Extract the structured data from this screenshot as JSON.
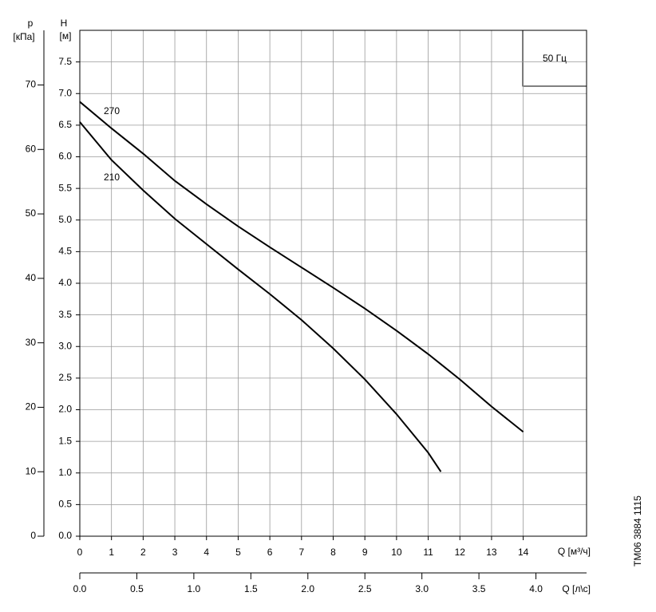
{
  "chart_data": {
    "type": "line",
    "p_label": "p",
    "p_unit": "[кПа]",
    "h_label": "H",
    "h_unit": "[м]",
    "x_label": "Q [м³/ч]",
    "x2_label": "Q [л\\с]",
    "annotation": "50 Гц",
    "code": "TM06 3884 1115",
    "x": [
      0,
      1,
      2,
      3,
      4,
      5,
      6,
      7,
      8,
      9,
      10,
      11,
      11.4,
      12,
      13,
      14
    ],
    "series": [
      {
        "name": "270",
        "color": "#000000",
        "values": [
          6.87,
          6.45,
          6.05,
          5.62,
          5.25,
          4.9,
          4.57,
          4.25,
          3.93,
          3.6,
          3.25,
          2.88,
          2.72,
          2.48,
          2.05,
          1.65
        ]
      },
      {
        "name": "210",
        "color": "#000000",
        "values": [
          6.55,
          5.95,
          5.47,
          5.02,
          4.62,
          4.22,
          3.83,
          3.42,
          2.97,
          2.48,
          1.93,
          1.32,
          1.02,
          null,
          null,
          null
        ]
      }
    ],
    "xlim": [
      0,
      16
    ],
    "xticks": [
      0,
      1,
      2,
      3,
      4,
      5,
      6,
      7,
      8,
      9,
      10,
      11,
      12,
      13,
      14
    ],
    "ylim": [
      0,
      8
    ],
    "yticks": [
      {
        "value": 0,
        "label": "0.0"
      },
      0.5,
      {
        "value": 1,
        "label": "1.0"
      },
      1.5,
      {
        "value": 2,
        "label": "2.0"
      },
      2.5,
      {
        "value": 3,
        "label": "3.0"
      },
      3.5,
      {
        "value": 4,
        "label": "4.0"
      },
      4.5,
      {
        "value": 5,
        "label": "5.0"
      },
      5.5,
      {
        "value": 6,
        "label": "6.0"
      },
      6.5,
      {
        "value": 7,
        "label": "7.0"
      },
      7.5
    ],
    "y2lim": [
      0,
      78.48
    ],
    "y2ticks": [
      0,
      10,
      20,
      30,
      40,
      50,
      60,
      70
    ],
    "x2lim": [
      0,
      4.444
    ],
    "x2ticks": [
      {
        "value": 0,
        "label": "0.0"
      },
      0.5,
      {
        "value": 1,
        "label": "1.0"
      },
      1.5,
      {
        "value": 2,
        "label": "2.0"
      },
      2.5,
      {
        "value": 3,
        "label": "3.0"
      },
      3.5,
      {
        "value": 4,
        "label": "4.0"
      }
    ],
    "grid": true
  }
}
